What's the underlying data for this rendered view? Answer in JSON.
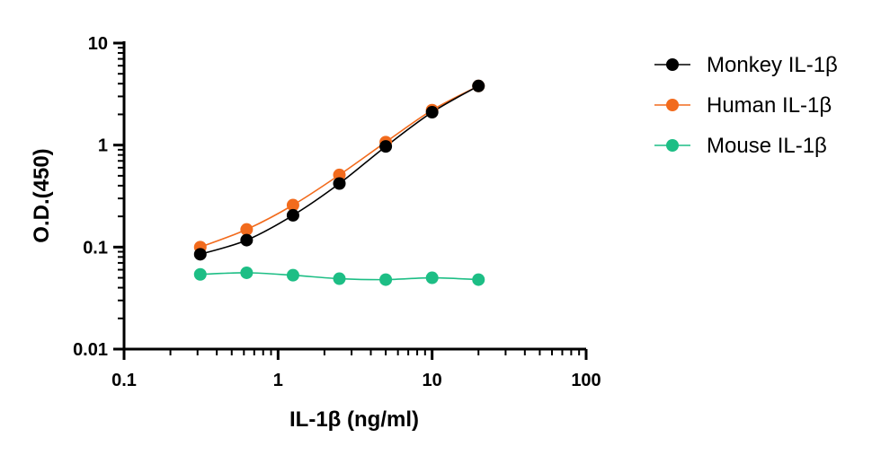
{
  "chart_data": {
    "type": "scatter",
    "xlabel": "IL-1β (ng/ml)",
    "ylabel": "O.D.(450)",
    "x_scale": "log",
    "y_scale": "log",
    "xlim": [
      0.1,
      100
    ],
    "ylim": [
      0.01,
      10
    ],
    "x_ticks": [
      "0.1",
      "1",
      "10",
      "100"
    ],
    "y_ticks": [
      "0.01",
      "0.1",
      "1",
      "10"
    ],
    "legend_position": "right",
    "x": [
      0.3125,
      0.625,
      1.25,
      2.5,
      5,
      10,
      20
    ],
    "series": [
      {
        "name": "Monkey IL-1β",
        "color": "#000000",
        "line_color": "#000000",
        "values": [
          0.085,
          0.117,
          0.205,
          0.42,
          0.97,
          2.1,
          3.8
        ]
      },
      {
        "name": "Human IL-1β",
        "color": "#F26B1D",
        "line_color": "#F26B1D",
        "values": [
          0.1,
          0.149,
          0.258,
          0.51,
          1.07,
          2.2,
          3.8
        ]
      },
      {
        "name": "Mouse IL-1β",
        "color": "#1DBE85",
        "line_color": "#1DBE85",
        "values": [
          0.054,
          0.056,
          0.053,
          0.049,
          0.048,
          0.05,
          0.048
        ]
      }
    ]
  }
}
